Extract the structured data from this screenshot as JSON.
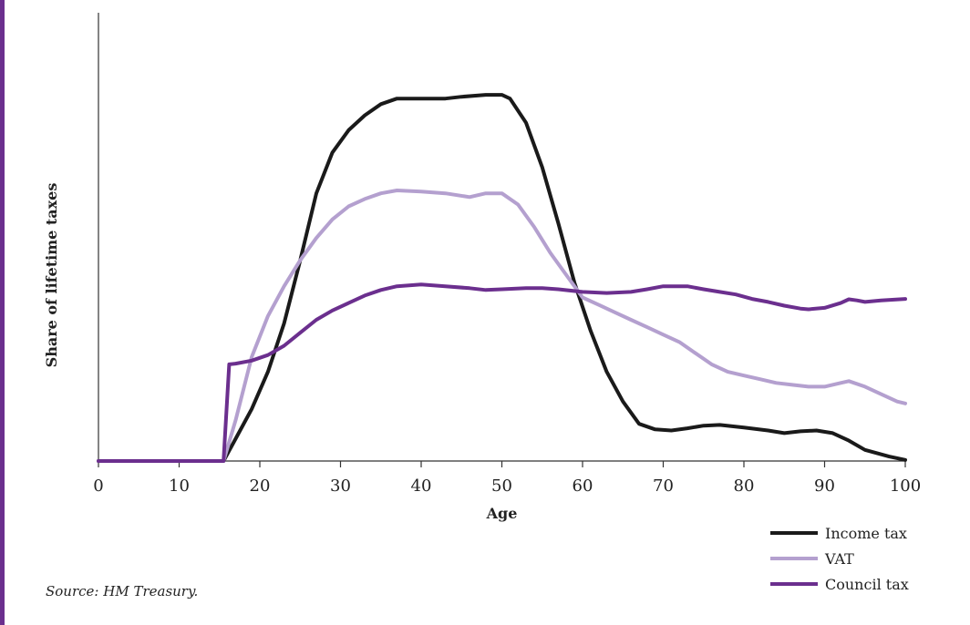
{
  "chart_data": {
    "type": "line",
    "title": "",
    "xlabel": "Age",
    "ylabel": "Share of lifetime taxes",
    "xlim": [
      0,
      100
    ],
    "ylim": [
      0,
      1
    ],
    "xticks": [
      0,
      10,
      20,
      30,
      40,
      50,
      60,
      70,
      80,
      90,
      100
    ],
    "grid": false,
    "legend_position": "bottom-right",
    "series": [
      {
        "name": "Income tax",
        "color": "#1a1a1a",
        "points": [
          [
            0,
            0
          ],
          [
            15,
            0
          ],
          [
            15.5,
            0
          ],
          [
            17,
            0.06
          ],
          [
            19,
            0.14
          ],
          [
            21,
            0.24
          ],
          [
            23,
            0.37
          ],
          [
            25,
            0.54
          ],
          [
            27,
            0.72
          ],
          [
            29,
            0.83
          ],
          [
            31,
            0.89
          ],
          [
            33,
            0.93
          ],
          [
            35,
            0.96
          ],
          [
            37,
            0.975
          ],
          [
            40,
            0.975
          ],
          [
            43,
            0.975
          ],
          [
            45,
            0.98
          ],
          [
            48,
            0.985
          ],
          [
            50,
            0.985
          ],
          [
            51,
            0.975
          ],
          [
            53,
            0.91
          ],
          [
            55,
            0.79
          ],
          [
            57,
            0.64
          ],
          [
            59,
            0.48
          ],
          [
            61,
            0.35
          ],
          [
            63,
            0.24
          ],
          [
            65,
            0.16
          ],
          [
            67,
            0.1
          ],
          [
            69,
            0.085
          ],
          [
            71,
            0.082
          ],
          [
            73,
            0.088
          ],
          [
            75,
            0.095
          ],
          [
            77,
            0.097
          ],
          [
            80,
            0.09
          ],
          [
            83,
            0.082
          ],
          [
            85,
            0.075
          ],
          [
            87,
            0.08
          ],
          [
            89,
            0.082
          ],
          [
            91,
            0.075
          ],
          [
            93,
            0.055
          ],
          [
            95,
            0.03
          ],
          [
            98,
            0.012
          ],
          [
            100,
            0.003
          ]
        ]
      },
      {
        "name": "VAT",
        "color": "#b4a0cf",
        "points": [
          [
            0,
            0
          ],
          [
            15,
            0
          ],
          [
            15.5,
            0
          ],
          [
            17,
            0.11
          ],
          [
            19,
            0.28
          ],
          [
            21,
            0.39
          ],
          [
            23,
            0.47
          ],
          [
            25,
            0.54
          ],
          [
            27,
            0.6
          ],
          [
            29,
            0.65
          ],
          [
            31,
            0.685
          ],
          [
            33,
            0.705
          ],
          [
            35,
            0.72
          ],
          [
            37,
            0.728
          ],
          [
            40,
            0.725
          ],
          [
            43,
            0.72
          ],
          [
            46,
            0.71
          ],
          [
            48,
            0.72
          ],
          [
            50,
            0.72
          ],
          [
            52,
            0.69
          ],
          [
            54,
            0.63
          ],
          [
            56,
            0.56
          ],
          [
            58,
            0.5
          ],
          [
            60,
            0.44
          ],
          [
            62,
            0.42
          ],
          [
            64,
            0.4
          ],
          [
            66,
            0.38
          ],
          [
            68,
            0.36
          ],
          [
            70,
            0.34
          ],
          [
            72,
            0.32
          ],
          [
            74,
            0.29
          ],
          [
            76,
            0.26
          ],
          [
            78,
            0.24
          ],
          [
            80,
            0.23
          ],
          [
            82,
            0.22
          ],
          [
            84,
            0.21
          ],
          [
            86,
            0.205
          ],
          [
            88,
            0.2
          ],
          [
            90,
            0.2
          ],
          [
            92,
            0.21
          ],
          [
            93,
            0.215
          ],
          [
            95,
            0.2
          ],
          [
            97,
            0.18
          ],
          [
            99,
            0.16
          ],
          [
            100,
            0.155
          ]
        ]
      },
      {
        "name": "Council tax",
        "color": "#6b2f8e",
        "points": [
          [
            0,
            0
          ],
          [
            15,
            0
          ],
          [
            15.5,
            0
          ],
          [
            16.2,
            0.26
          ],
          [
            17,
            0.262
          ],
          [
            19,
            0.27
          ],
          [
            21,
            0.285
          ],
          [
            23,
            0.31
          ],
          [
            25,
            0.345
          ],
          [
            27,
            0.38
          ],
          [
            29,
            0.405
          ],
          [
            31,
            0.425
          ],
          [
            33,
            0.445
          ],
          [
            35,
            0.46
          ],
          [
            37,
            0.47
          ],
          [
            40,
            0.475
          ],
          [
            43,
            0.47
          ],
          [
            46,
            0.465
          ],
          [
            48,
            0.46
          ],
          [
            50,
            0.462
          ],
          [
            53,
            0.465
          ],
          [
            55,
            0.465
          ],
          [
            57,
            0.462
          ],
          [
            60,
            0.455
          ],
          [
            63,
            0.452
          ],
          [
            66,
            0.455
          ],
          [
            68,
            0.462
          ],
          [
            70,
            0.47
          ],
          [
            73,
            0.47
          ],
          [
            75,
            0.462
          ],
          [
            77,
            0.455
          ],
          [
            79,
            0.448
          ],
          [
            81,
            0.436
          ],
          [
            83,
            0.428
          ],
          [
            85,
            0.418
          ],
          [
            87,
            0.41
          ],
          [
            88,
            0.408
          ],
          [
            90,
            0.412
          ],
          [
            92,
            0.425
          ],
          [
            93,
            0.435
          ],
          [
            94,
            0.432
          ],
          [
            95,
            0.428
          ],
          [
            97,
            0.432
          ],
          [
            100,
            0.436
          ]
        ]
      }
    ]
  },
  "source_note": "Source: HM Treasury."
}
